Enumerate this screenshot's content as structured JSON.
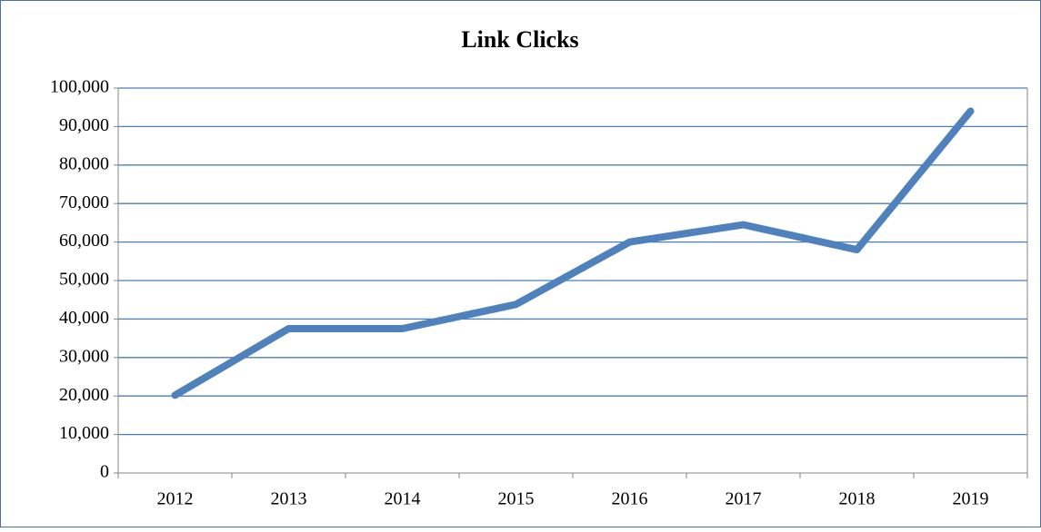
{
  "chart_data": {
    "type": "line",
    "title": "Link Clicks",
    "categories": [
      "2012",
      "2013",
      "2014",
      "2015",
      "2016",
      "2017",
      "2018",
      "2019"
    ],
    "series": [
      {
        "name": "Link Clicks",
        "color": "#4f81bd",
        "values": [
          20200,
          37500,
          37500,
          43800,
          60000,
          64500,
          58000,
          94000
        ]
      }
    ],
    "ylim": [
      0,
      100000
    ],
    "yticks": [
      0,
      {
        "value": 10000,
        "label": "10,000"
      },
      {
        "value": 20000,
        "label": "20,000"
      },
      {
        "value": 30000,
        "label": "30,000"
      },
      {
        "value": 40000,
        "label": "40,000"
      },
      {
        "value": 50000,
        "label": "50,000"
      },
      {
        "value": 60000,
        "label": "60,000"
      },
      {
        "value": 70000,
        "label": "70,000"
      },
      {
        "value": 80000,
        "label": "80,000"
      },
      {
        "value": 90000,
        "label": "90,000"
      },
      {
        "value": 100000,
        "label": "100,000"
      }
    ],
    "grid": true,
    "grid_color": "#4a7ebb",
    "legend": false
  }
}
